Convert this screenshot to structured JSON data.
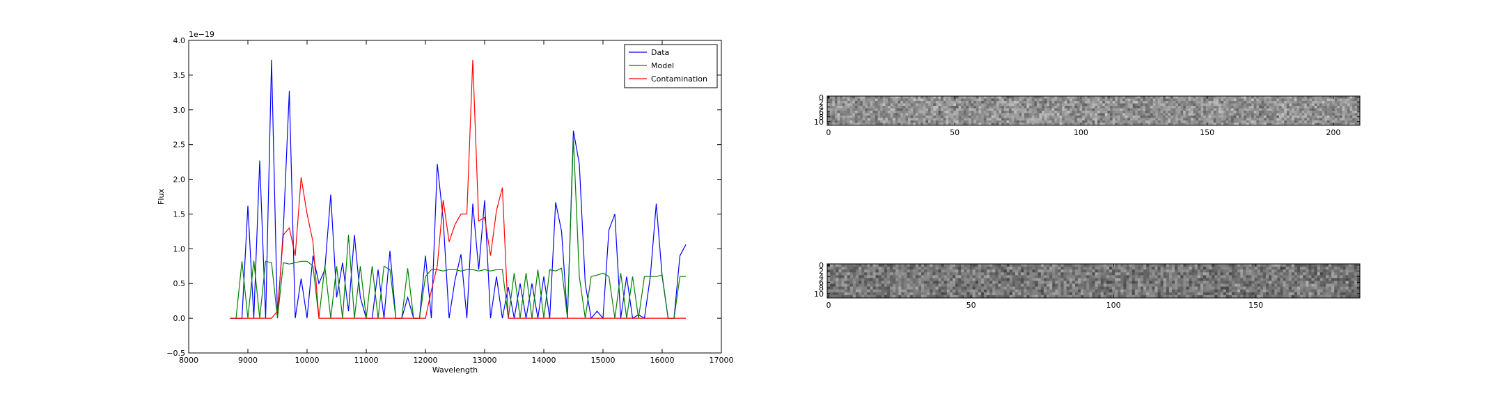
{
  "chart_data": [
    {
      "type": "line",
      "xlabel": "Wavelength",
      "ylabel": "Flux",
      "offset_text": "1e−19",
      "x": [
        8700,
        8800,
        8900,
        9000,
        9100,
        9200,
        9300,
        9400,
        9500,
        9600,
        9700,
        9800,
        9900,
        10000,
        10100,
        10200,
        10300,
        10400,
        10500,
        10600,
        10700,
        10800,
        10900,
        11000,
        11100,
        11200,
        11300,
        11400,
        11500,
        11600,
        11700,
        11800,
        11900,
        12000,
        12100,
        12200,
        12300,
        12400,
        12500,
        12600,
        12700,
        12800,
        12900,
        13000,
        13100,
        13200,
        13300,
        13400,
        13500,
        13600,
        13700,
        13800,
        13900,
        14000,
        14100,
        14200,
        14300,
        14400,
        14500,
        14600,
        14700,
        14800,
        14900,
        15000,
        15100,
        15200,
        15300,
        15400,
        15500,
        15600,
        15700,
        15800,
        15900,
        16000,
        16100,
        16200,
        16300,
        16400
      ],
      "series": [
        {
          "name": "Data",
          "color": "#0000ff",
          "values": [
            0,
            0,
            0,
            1.62,
            0,
            2.27,
            0,
            3.72,
            0,
            1.3,
            3.27,
            0,
            0.57,
            0,
            0.9,
            0.5,
            0.7,
            1.78,
            0.3,
            0.8,
            0.1,
            1.2,
            0.3,
            0,
            0,
            0.7,
            0,
            0.97,
            0,
            0,
            0.3,
            0,
            0,
            0.9,
            0,
            2.22,
            1.42,
            0,
            0.55,
            0.92,
            0,
            1.65,
            0.7,
            1.7,
            0,
            0.6,
            0,
            0.45,
            0,
            0.5,
            0,
            0.5,
            0,
            0.6,
            0,
            1.67,
            1.25,
            0,
            2.7,
            2.22,
            0.5,
            0,
            0.1,
            0,
            1.27,
            1.5,
            0,
            0.6,
            0,
            0.05,
            0,
            0.6,
            1.65,
            0.6,
            0,
            0,
            0.9,
            1.06
          ]
        },
        {
          "name": "Model",
          "color": "#008000",
          "values": [
            0,
            0,
            0.82,
            0,
            0.83,
            0,
            0.82,
            0.8,
            0,
            0.8,
            0.78,
            0.8,
            0.82,
            0.82,
            0.75,
            0,
            0.75,
            0,
            0.75,
            0,
            1.2,
            0,
            0.75,
            0,
            0.75,
            0,
            0.75,
            0.7,
            0,
            0,
            0.72,
            0,
            0,
            0.6,
            0.7,
            0.7,
            0.68,
            0.7,
            0.7,
            0.68,
            0.7,
            0.7,
            0.68,
            0.7,
            0.68,
            0.7,
            0.7,
            0,
            0.65,
            0,
            0.65,
            0,
            0.7,
            0,
            0.7,
            0.68,
            0.72,
            0,
            2.6,
            0.6,
            0,
            0.6,
            0.62,
            0.65,
            0.6,
            0,
            0.65,
            0,
            0.6,
            0,
            0.6,
            0.6,
            0.6,
            0.62,
            0,
            0,
            0.6,
            0.6
          ]
        },
        {
          "name": "Contamination",
          "color": "#ff0000",
          "values": [
            0,
            0,
            0,
            0,
            0,
            0,
            0,
            0,
            0.1,
            1.2,
            1.3,
            0.9,
            2.03,
            1.5,
            1.1,
            0,
            0,
            0,
            0,
            0,
            0,
            0,
            0,
            0,
            0,
            0,
            0,
            0,
            0,
            0,
            0,
            0,
            0,
            0,
            0.4,
            0.75,
            1.7,
            1.1,
            1.35,
            1.5,
            1.5,
            3.72,
            1.4,
            1.45,
            0.9,
            1.55,
            1.88,
            0,
            0,
            0,
            0,
            0,
            0,
            0,
            0,
            0,
            0,
            0,
            0,
            0,
            0,
            0,
            0,
            0,
            0,
            0,
            0,
            0,
            0,
            0,
            0,
            0,
            0,
            0,
            0,
            0,
            0,
            0
          ]
        }
      ],
      "xlim": [
        8000,
        17000
      ],
      "xticks": [
        8000,
        9000,
        10000,
        11000,
        12000,
        13000,
        14000,
        15000,
        16000,
        17000
      ],
      "ylim": [
        -0.5,
        4.0
      ],
      "yticks": [
        {
          "value": -0.5,
          "label": "−0.5"
        },
        {
          "value": 0,
          "label": "0.0"
        },
        0.5,
        {
          "value": 1,
          "label": "1.0"
        },
        1.5,
        {
          "value": 2,
          "label": "2.0"
        },
        2.5,
        {
          "value": 3,
          "label": "3.0"
        },
        3.5,
        {
          "value": 4,
          "label": "4.0"
        }
      ],
      "legend": "upper right"
    },
    {
      "type": "image",
      "xlim": [
        -0.5,
        210.5
      ],
      "xticks": [
        0,
        50,
        100,
        150,
        200
      ],
      "ylim": [
        11.5,
        -0.5
      ],
      "yticks": [
        0,
        2,
        4,
        6,
        8,
        10
      ]
    },
    {
      "type": "image",
      "xlim": [
        -0.5,
        186.5
      ],
      "xticks": [
        0,
        50,
        100,
        150
      ],
      "ylim": [
        11.5,
        -0.5
      ],
      "yticks": [
        0,
        2,
        4,
        6,
        8,
        10
      ]
    }
  ]
}
